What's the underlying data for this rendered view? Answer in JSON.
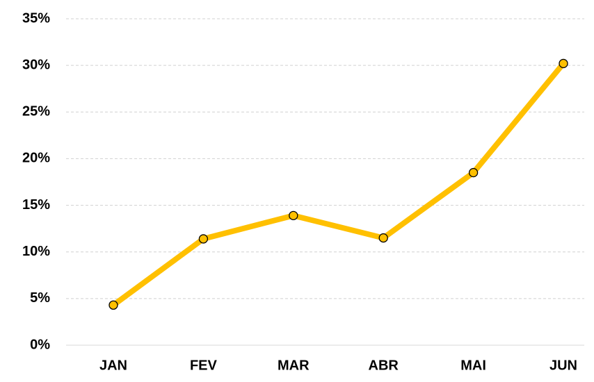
{
  "chart_data": {
    "type": "line",
    "categories": [
      "JAN",
      "FEV",
      "MAR",
      "ABR",
      "MAI",
      "JUN"
    ],
    "series": [
      {
        "color": "#FFC000",
        "values": [
          4.3,
          11.4,
          13.9,
          11.5,
          18.5,
          30.2
        ]
      }
    ],
    "ylim": [
      0,
      35
    ],
    "yticks": [
      {
        "value": 0,
        "label": "0%"
      },
      {
        "value": 5,
        "label": "5%"
      },
      {
        "value": 10,
        "label": "10%"
      },
      {
        "value": 15,
        "label": "15%"
      },
      {
        "value": 20,
        "label": "20%"
      },
      {
        "value": 25,
        "label": "25%"
      },
      {
        "value": 30,
        "label": "30%"
      },
      {
        "value": 35,
        "label": "35%"
      }
    ],
    "grid": true
  }
}
